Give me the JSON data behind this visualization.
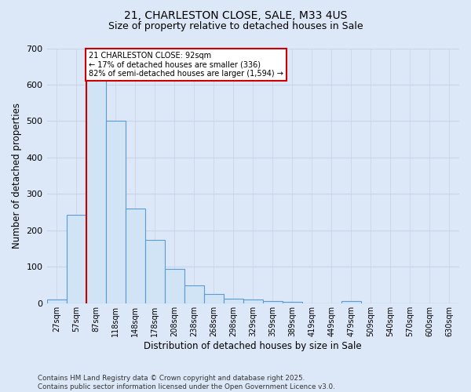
{
  "title_line1": "21, CHARLESTON CLOSE, SALE, M33 4US",
  "title_line2": "Size of property relative to detached houses in Sale",
  "xlabel": "Distribution of detached houses by size in Sale",
  "ylabel": "Number of detached properties",
  "bar_labels": [
    "27sqm",
    "57sqm",
    "87sqm",
    "118sqm",
    "148sqm",
    "178sqm",
    "208sqm",
    "238sqm",
    "268sqm",
    "298sqm",
    "329sqm",
    "359sqm",
    "389sqm",
    "419sqm",
    "449sqm",
    "479sqm",
    "509sqm",
    "540sqm",
    "570sqm",
    "600sqm",
    "630sqm"
  ],
  "bar_heights": [
    10,
    243,
    620,
    500,
    260,
    173,
    95,
    50,
    25,
    13,
    10,
    7,
    4,
    0,
    0,
    5,
    0,
    0,
    0,
    0,
    0
  ],
  "bar_color": "#d0e4f5",
  "bar_edge_color": "#5b9bd5",
  "highlight_bar_index": 2,
  "highlight_line_color": "#cc0000",
  "annotation_text": "21 CHARLESTON CLOSE: 92sqm\n← 17% of detached houses are smaller (336)\n82% of semi-detached houses are larger (1,594) →",
  "annotation_box_color": "#ffffff",
  "annotation_box_edge_color": "#cc0000",
  "annotation_text_color": "#000000",
  "grid_color": "#c8d4e8",
  "background_color": "#dce8f8",
  "plot_bg_color": "#dce8f8",
  "footer_text": "Contains HM Land Registry data © Crown copyright and database right 2025.\nContains public sector information licensed under the Open Government Licence v3.0.",
  "ylim": [
    0,
    700
  ],
  "yticks": [
    0,
    100,
    200,
    300,
    400,
    500,
    600,
    700
  ]
}
